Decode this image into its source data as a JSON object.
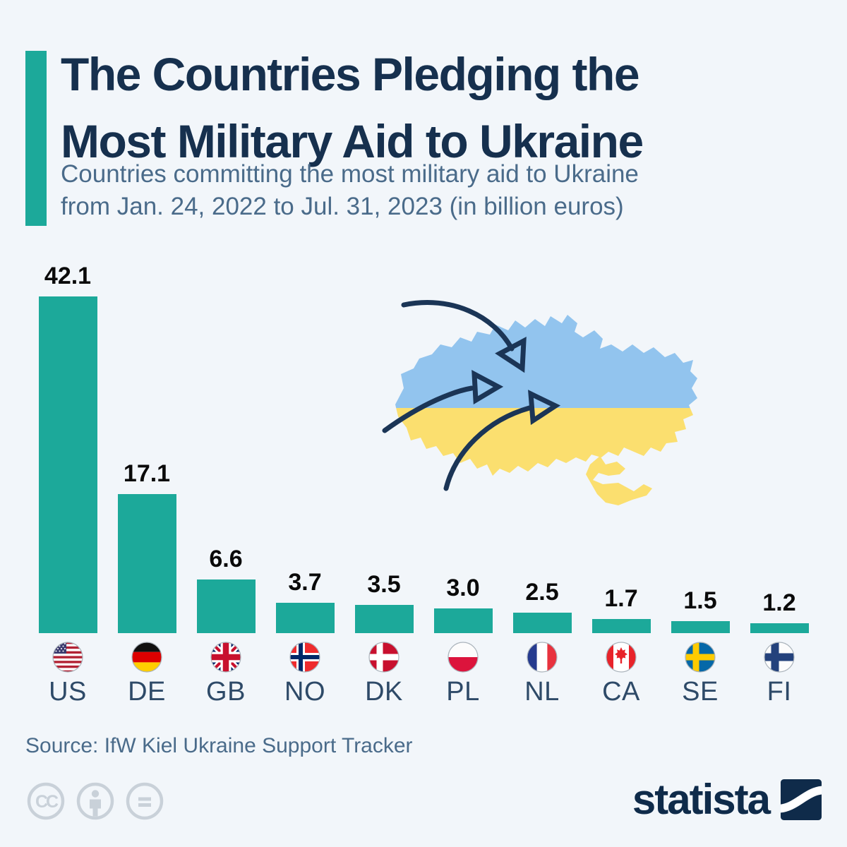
{
  "page": {
    "background_color": "#F2F6FA"
  },
  "header": {
    "accent_color": "#1CA99A",
    "title_line1": "The Countries Pledging the",
    "title_line2": "Most Military Aid to Ukraine",
    "subtitle_line1": "Countries committing the most military aid to Ukraine",
    "subtitle_line2": "from Jan. 24, 2022 to Jul. 31, 2023 (in billion euros)"
  },
  "chart_data": {
    "type": "bar",
    "title": "The Countries Pledging the Most Military Aid to Ukraine",
    "subtitle": "Countries committing the most military aid to Ukraine from Jan. 24, 2022 to Jul. 31, 2023 (in billion euros)",
    "unit": "billion euros",
    "categories": [
      "US",
      "DE",
      "GB",
      "NO",
      "DK",
      "PL",
      "NL",
      "CA",
      "SE",
      "FI"
    ],
    "values": [
      42.1,
      17.1,
      6.6,
      3.7,
      3.5,
      3.0,
      2.5,
      1.7,
      1.5,
      1.2
    ],
    "value_labels": [
      "42.1",
      "17.1",
      "6.6",
      "3.7",
      "3.5",
      "3.0",
      "2.5",
      "1.7",
      "1.5",
      "1.2"
    ],
    "flags": [
      "us-flag",
      "de-flag",
      "gb-flag",
      "no-flag",
      "dk-flag",
      "pl-flag",
      "nl-flag",
      "ca-flag",
      "se-flag",
      "fi-flag"
    ],
    "bar_color": "#1CA99A",
    "value_label_color": "#0A0A0A",
    "ylim": [
      0,
      45
    ],
    "grid": false,
    "legend": false,
    "axes_visible": false
  },
  "map": {
    "name": "ukraine-map",
    "blue_color": "#92C4EE",
    "yellow_color": "#FBDF6F",
    "arrow_color": "#1B3556"
  },
  "footer": {
    "source": "Source: IfW Kiel Ukraine Support Tracker",
    "license_icons": [
      "cc-icon",
      "attribution-icon",
      "no-derivatives-icon"
    ],
    "brand": "statista",
    "brand_color": "#0F2B4A"
  }
}
